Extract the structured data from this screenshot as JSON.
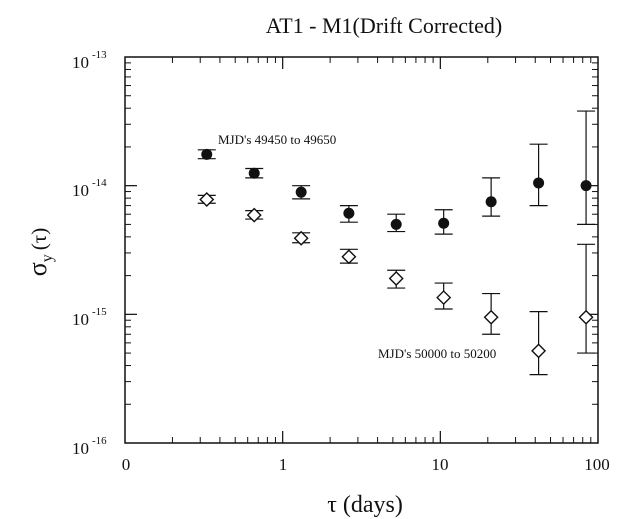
{
  "chart_data": {
    "type": "scatter",
    "title": "AT1 - M1(Drift Corrected)",
    "xlabel": "τ (days)",
    "ylabel_main": "σ",
    "ylabel_sub": "y",
    "ylabel_arg": "(τ)",
    "xscale": "log",
    "yscale": "log",
    "xlim": [
      0.1,
      100
    ],
    "ylim": [
      1e-16,
      1e-13
    ],
    "x_tick_labels": [
      "0",
      "1",
      "10",
      "100"
    ],
    "y_tick_labels": [
      {
        "base": "10",
        "exp": "-13"
      },
      {
        "base": "10",
        "exp": "-14"
      },
      {
        "base": "10",
        "exp": "-15"
      },
      {
        "base": "10",
        "exp": "-16"
      }
    ],
    "grid": false,
    "series": [
      {
        "marker": "filled-circle",
        "points": [
          {
            "x": 0.33,
            "y": 1.75e-14,
            "lo": 1.62e-14,
            "hi": 1.9e-14
          },
          {
            "x": 0.66,
            "y": 1.25e-14,
            "lo": 1.15e-14,
            "hi": 1.36e-14
          },
          {
            "x": 1.31,
            "y": 8.9e-15,
            "lo": 7.9e-15,
            "hi": 1e-14
          },
          {
            "x": 2.63,
            "y": 6.1e-15,
            "lo": 5.2e-15,
            "hi": 7e-15
          },
          {
            "x": 5.25,
            "y": 5e-15,
            "lo": 4.4e-15,
            "hi": 6e-15
          },
          {
            "x": 10.5,
            "y": 5.1e-15,
            "lo": 4.2e-15,
            "hi": 6.5e-15
          },
          {
            "x": 21,
            "y": 7.5e-15,
            "lo": 5.8e-15,
            "hi": 1.15e-14
          },
          {
            "x": 42,
            "y": 1.05e-14,
            "lo": 7e-15,
            "hi": 2.1e-14
          },
          {
            "x": 84,
            "y": 1e-14,
            "lo": 5e-15,
            "hi": 3.8e-14
          }
        ]
      },
      {
        "marker": "open-diamond",
        "points": [
          {
            "x": 0.33,
            "y": 7.8e-15,
            "lo": 7.3e-15,
            "hi": 8.4e-15
          },
          {
            "x": 0.66,
            "y": 5.9e-15,
            "lo": 5.5e-15,
            "hi": 6.4e-15
          },
          {
            "x": 1.31,
            "y": 3.9e-15,
            "lo": 3.6e-15,
            "hi": 4.3e-15
          },
          {
            "x": 2.63,
            "y": 2.8e-15,
            "lo": 2.5e-15,
            "hi": 3.2e-15
          },
          {
            "x": 5.25,
            "y": 1.9e-15,
            "lo": 1.6e-15,
            "hi": 2.2e-15
          },
          {
            "x": 10.5,
            "y": 1.35e-15,
            "lo": 1.1e-15,
            "hi": 1.75e-15
          },
          {
            "x": 21,
            "y": 9.5e-16,
            "lo": 7e-16,
            "hi": 1.45e-15
          },
          {
            "x": 42,
            "y": 5.2e-16,
            "lo": 3.4e-16,
            "hi": 1.05e-15
          },
          {
            "x": 84,
            "y": 9.5e-16,
            "lo": 5e-16,
            "hi": 3.5e-15
          }
        ]
      }
    ],
    "annotations": [
      "MJD's 49450 to 49650",
      "MJD's 50000 to 50200"
    ]
  }
}
